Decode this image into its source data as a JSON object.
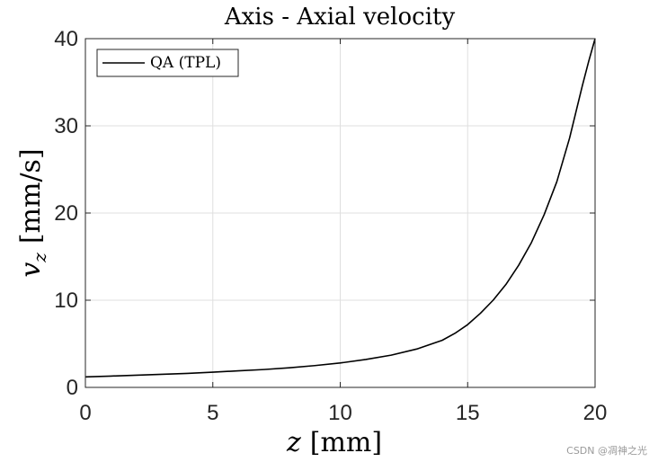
{
  "chart_data": {
    "type": "line",
    "title": "Axis - Axial velocity",
    "xlabel_var": "z",
    "xlabel_unit": "[mm]",
    "ylabel_var": "v",
    "ylabel_sub": "z",
    "ylabel_unit": "[mm/s]",
    "xlim": [
      0,
      20
    ],
    "ylim": [
      0,
      40
    ],
    "xticks": [
      0,
      5,
      10,
      15,
      20
    ],
    "yticks": [
      0,
      10,
      20,
      30,
      40
    ],
    "grid": true,
    "legend_position": "top-left",
    "series": [
      {
        "name": "QA (TPL)",
        "color": "#000000",
        "x": [
          0,
          1,
          2,
          3,
          4,
          5,
          6,
          7,
          8,
          9,
          10,
          11,
          12,
          13,
          14,
          14.5,
          15,
          15.5,
          16,
          16.5,
          17,
          17.5,
          18,
          18.5,
          19,
          19.25,
          19.5,
          19.75,
          20
        ],
        "y": [
          1.2,
          1.3,
          1.4,
          1.5,
          1.6,
          1.75,
          1.9,
          2.05,
          2.25,
          2.5,
          2.8,
          3.2,
          3.7,
          4.4,
          5.4,
          6.2,
          7.2,
          8.5,
          10.0,
          11.8,
          14.0,
          16.6,
          19.8,
          23.6,
          28.6,
          31.6,
          34.6,
          37.4,
          40.0
        ]
      }
    ]
  },
  "watermark": "CSDN @凋神之光"
}
